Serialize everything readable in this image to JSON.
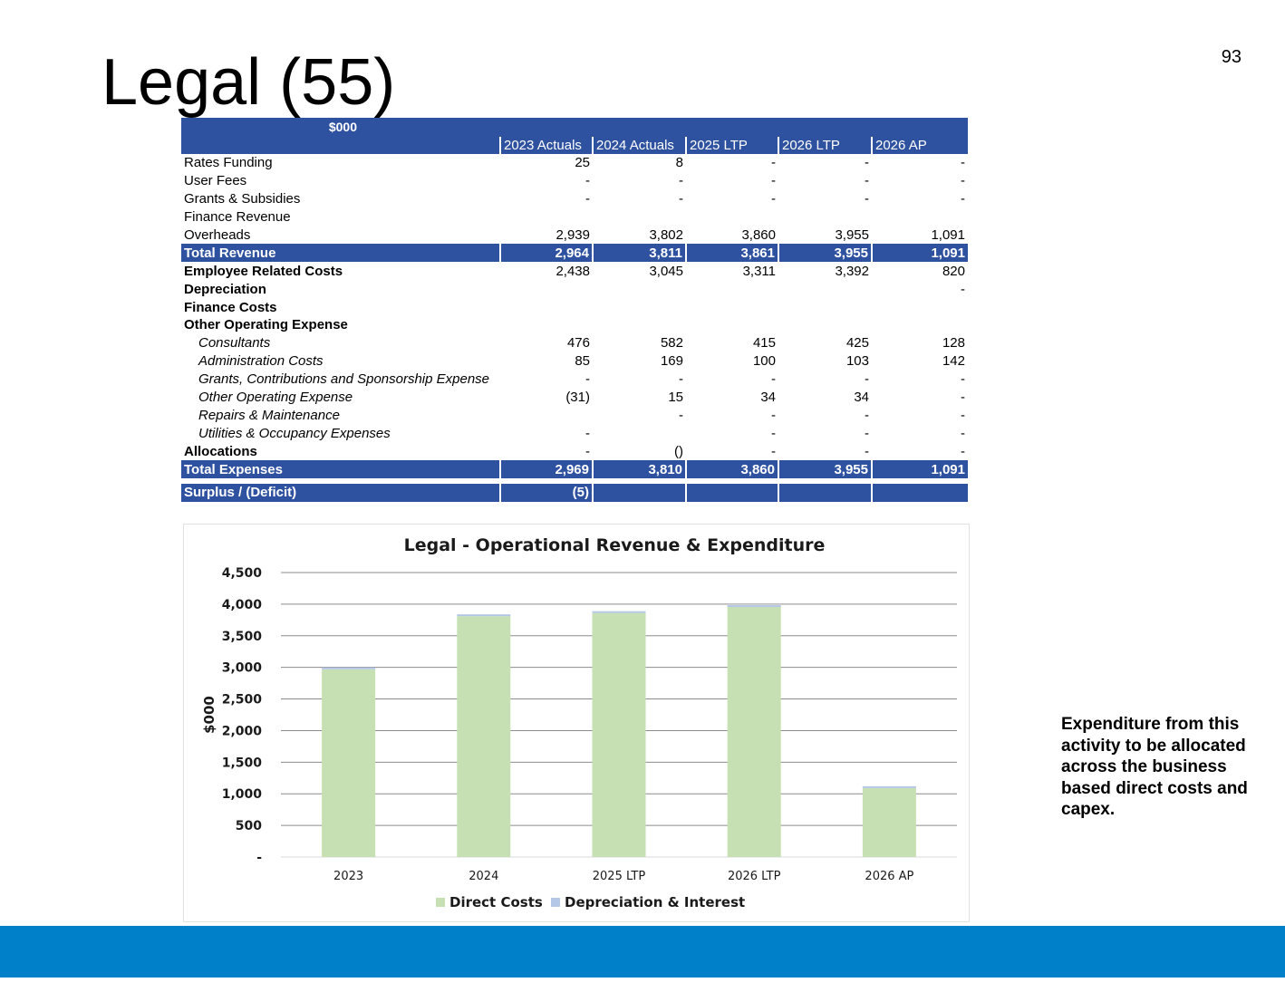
{
  "slide": {
    "page_number": "93",
    "title": "Legal (55)",
    "side_note": "Expenditure from this activity to be allocated across the business based direct costs and capex.",
    "footer_color": "#0080c8"
  },
  "table": {
    "unit_label": "$000",
    "columns": [
      "2023 Actuals",
      "2024 Actuals",
      "2025 LTP",
      "2026 LTP",
      "2026 AP"
    ],
    "rows": [
      {
        "label": "Rates Funding",
        "style": "normal",
        "values": [
          "25",
          "8",
          "-",
          "-",
          "-"
        ]
      },
      {
        "label": "User Fees",
        "style": "normal",
        "values": [
          "-",
          "-",
          "-",
          "-",
          "-"
        ]
      },
      {
        "label": "Grants & Subsidies",
        "style": "normal",
        "values": [
          "-",
          "-",
          "-",
          "-",
          "-"
        ]
      },
      {
        "label": "Finance Revenue",
        "style": "normal",
        "values": [
          "",
          "",
          "",
          "",
          ""
        ]
      },
      {
        "label": "Overheads",
        "style": "normal",
        "values": [
          "2,939",
          "3,802",
          "3,860",
          "3,955",
          "1,091"
        ]
      },
      {
        "label": "Total Revenue",
        "style": "band",
        "values": [
          "2,964",
          "3,811",
          "3,861",
          "3,955",
          "1,091"
        ]
      },
      {
        "label": "Employee Related Costs",
        "style": "bold",
        "values": [
          "2,438",
          "3,045",
          "3,311",
          "3,392",
          "820"
        ]
      },
      {
        "label": "Depreciation",
        "style": "bold",
        "values": [
          "",
          "",
          "",
          "",
          "-"
        ]
      },
      {
        "label": "Finance Costs",
        "style": "bold",
        "values": [
          "",
          "",
          "",
          "",
          ""
        ]
      },
      {
        "label": "Other Operating  Expense",
        "style": "bold",
        "values": [
          "",
          "",
          "",
          "",
          ""
        ]
      },
      {
        "label": "Consultants",
        "style": "italic",
        "values": [
          "476",
          "582",
          "415",
          "425",
          "128"
        ]
      },
      {
        "label": "Administration Costs",
        "style": "italic",
        "values": [
          "85",
          "169",
          "100",
          "103",
          "142"
        ]
      },
      {
        "label": "Grants, Contributions and Sponsorship Expense",
        "style": "italic",
        "values": [
          "-",
          "-",
          "-",
          "-",
          "-"
        ]
      },
      {
        "label": "Other Operating Expense",
        "style": "italic",
        "values": [
          "(31)",
          "15",
          "34",
          "34",
          "-"
        ]
      },
      {
        "label": "Repairs & Maintenance",
        "style": "italic",
        "values": [
          "",
          "-",
          "-",
          "-",
          "-"
        ]
      },
      {
        "label": "Utilities & Occupancy Expenses",
        "style": "italic",
        "values": [
          "-",
          "",
          "-",
          "-",
          "-"
        ]
      },
      {
        "label": "Allocations",
        "style": "bold",
        "values": [
          "-",
          "()",
          "-",
          "-",
          "-"
        ]
      },
      {
        "label": "Total Expenses",
        "style": "band",
        "values": [
          "2,969",
          "3,810",
          "3,860",
          "3,955",
          "1,091"
        ]
      },
      {
        "label": "",
        "style": "gap",
        "values": [
          "",
          "",
          "",
          "",
          ""
        ]
      },
      {
        "label": "Surplus / (Deficit)",
        "style": "band",
        "values": [
          "(5)",
          "",
          "",
          "",
          ""
        ]
      }
    ],
    "band_color": "#2f52a0"
  },
  "chart_data": {
    "type": "bar",
    "stacked": true,
    "title": "Legal - Operational Revenue & Expenditure",
    "xlabel": "",
    "ylabel": "$000",
    "categories": [
      "2023",
      "2024",
      "2025 LTP",
      "2026 LTP",
      "2026 AP"
    ],
    "series": [
      {
        "name": "Direct Costs",
        "color": "#c6e0b4",
        "values": [
          2969,
          3810,
          3860,
          3955,
          1091
        ]
      },
      {
        "name": "Depreciation & Interest",
        "color": "#b4c7e7",
        "values": [
          0,
          0,
          0,
          0,
          0
        ]
      }
    ],
    "ylim": [
      0,
      4500
    ],
    "yticks": [
      0,
      500,
      1000,
      1500,
      2000,
      2500,
      3000,
      3500,
      4000,
      4500
    ],
    "ytick_labels": [
      "-",
      "500",
      "1,000",
      "1,500",
      "2,000",
      "2,500",
      "3,000",
      "3,500",
      "4,000",
      "4,500"
    ],
    "grid": true,
    "legend_position": "bottom"
  }
}
